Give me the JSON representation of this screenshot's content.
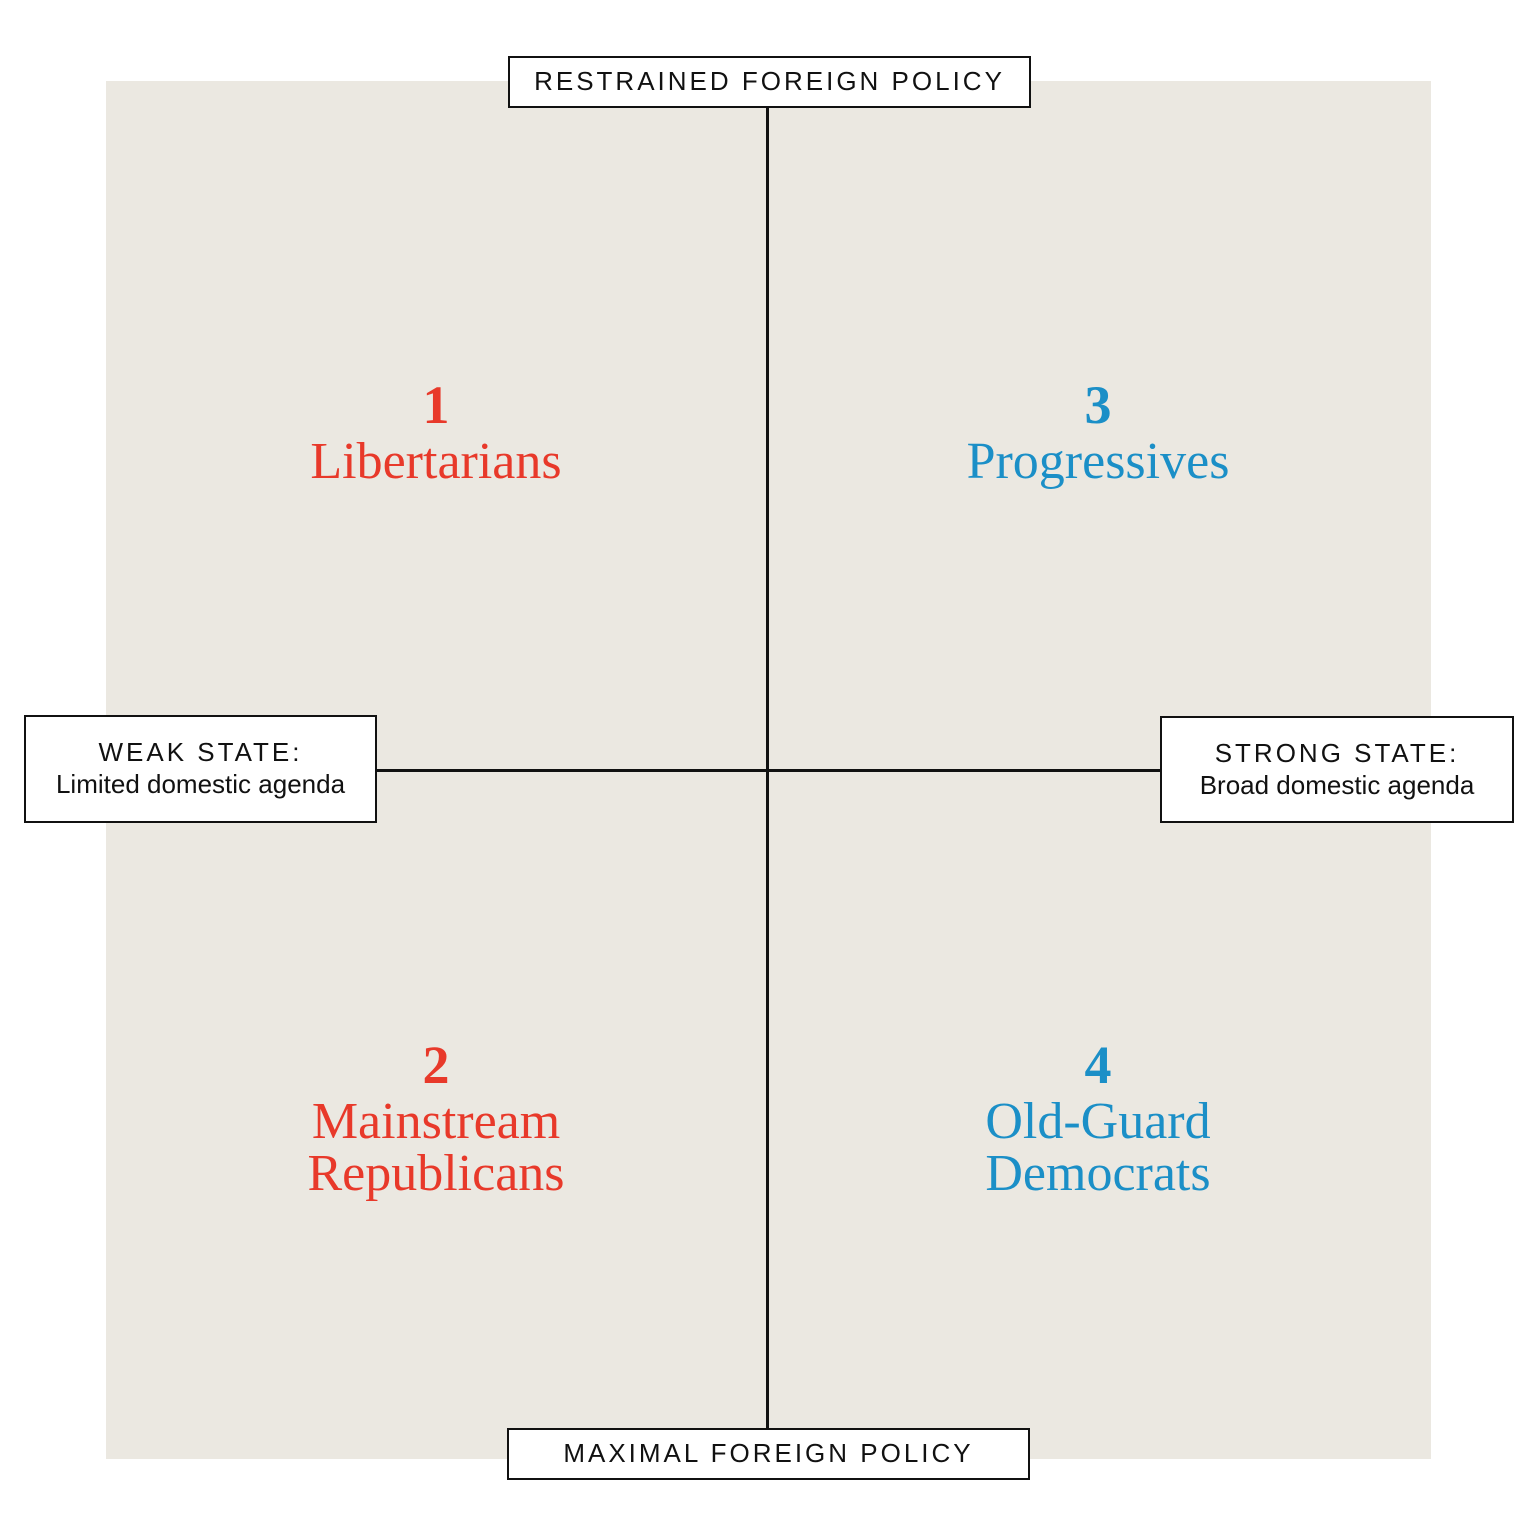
{
  "axes": {
    "top": "RESTRAINED FOREIGN POLICY",
    "bottom": "MAXIMAL FOREIGN POLICY",
    "left": {
      "heading": "WEAK STATE:",
      "sub": "Limited domestic agenda"
    },
    "right": {
      "heading": "STRONG STATE:",
      "sub": "Broad domestic agenda"
    }
  },
  "quadrants": {
    "q1": {
      "number": "1",
      "name": "Libertarians"
    },
    "q2": {
      "number": "2",
      "name": "Mainstream Republicans"
    },
    "q3": {
      "number": "3",
      "name": "Progressives"
    },
    "q4": {
      "number": "4",
      "name": "Old-Guard Democrats"
    }
  },
  "colors": {
    "panel_background": "#ebe8e1",
    "republican_red": "#e8392a",
    "democrat_blue": "#1b8fc7",
    "axis_line": "#111111"
  }
}
